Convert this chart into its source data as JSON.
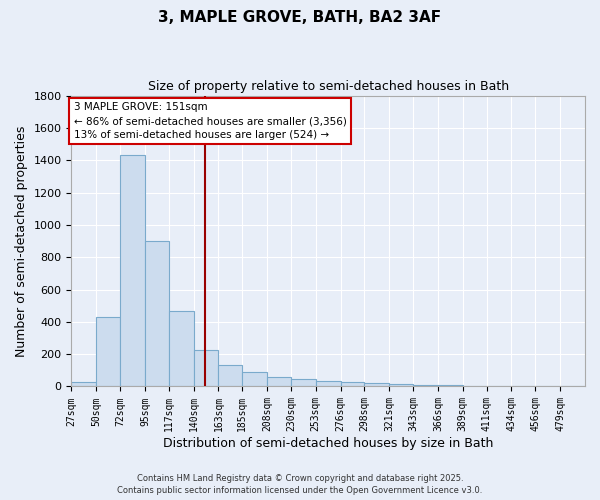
{
  "title": "3, MAPLE GROVE, BATH, BA2 3AF",
  "subtitle": "Size of property relative to semi-detached houses in Bath",
  "xlabel": "Distribution of semi-detached houses by size in Bath",
  "ylabel": "Number of semi-detached properties",
  "bar_color": "#ccdcee",
  "bar_edge_color": "#7aaacc",
  "background_color": "#e8eef8",
  "grid_color": "#ffffff",
  "bin_labels": [
    "27sqm",
    "50sqm",
    "72sqm",
    "95sqm",
    "117sqm",
    "140sqm",
    "163sqm",
    "185sqm",
    "208sqm",
    "230sqm",
    "253sqm",
    "276sqm",
    "298sqm",
    "321sqm",
    "343sqm",
    "366sqm",
    "389sqm",
    "411sqm",
    "434sqm",
    "456sqm",
    "479sqm"
  ],
  "bin_edges": [
    27,
    50,
    72,
    95,
    117,
    140,
    163,
    185,
    208,
    230,
    253,
    276,
    298,
    321,
    343,
    366,
    389,
    411,
    434,
    456,
    479,
    502
  ],
  "bar_heights": [
    30,
    430,
    1430,
    900,
    470,
    225,
    130,
    90,
    60,
    48,
    35,
    25,
    20,
    15,
    10,
    8,
    5,
    3,
    2,
    1,
    1
  ],
  "vline_x": 151,
  "vline_color": "#990000",
  "annotation_title": "3 MAPLE GROVE: 151sqm",
  "annotation_line1": "← 86% of semi-detached houses are smaller (3,356)",
  "annotation_line2": "13% of semi-detached houses are larger (524) →",
  "annotation_box_facecolor": "#ffffff",
  "annotation_box_edgecolor": "#cc0000",
  "ylim": [
    0,
    1800
  ],
  "yticks": [
    0,
    200,
    400,
    600,
    800,
    1000,
    1200,
    1400,
    1600,
    1800
  ],
  "footer1": "Contains HM Land Registry data © Crown copyright and database right 2025.",
  "footer2": "Contains public sector information licensed under the Open Government Licence v3.0."
}
